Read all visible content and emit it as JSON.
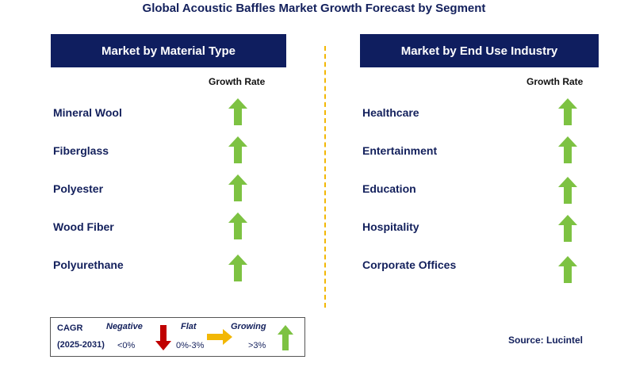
{
  "title": "Global Acoustic Baffles Market Growth Forecast by Segment",
  "left_panel": {
    "header": "Market by  Material Type",
    "column_header": "Growth Rate",
    "rows": [
      {
        "label": "Mineral Wool",
        "trend": "growing"
      },
      {
        "label": "Fiberglass",
        "trend": "growing"
      },
      {
        "label": "Polyester",
        "trend": "growing"
      },
      {
        "label": "Wood Fiber",
        "trend": "growing"
      },
      {
        "label": "Polyurethane",
        "trend": "growing"
      }
    ]
  },
  "right_panel": {
    "header": "Market by End Use Industry",
    "column_header": "Growth Rate",
    "rows": [
      {
        "label": "Healthcare",
        "trend": "growing"
      },
      {
        "label": "Entertainment",
        "trend": "growing"
      },
      {
        "label": "Education",
        "trend": "growing"
      },
      {
        "label": "Hospitality",
        "trend": "growing"
      },
      {
        "label": "Corporate Offices",
        "trend": "growing"
      }
    ]
  },
  "legend": {
    "cagr_label": "CAGR",
    "period": "(2025-2031)",
    "negative_label": "Negative",
    "negative_range": "<0%",
    "flat_label": "Flat",
    "flat_range": "0%-3%",
    "growing_label": "Growing",
    "growing_range": ">3%"
  },
  "source": "Source: Lucintel",
  "colors": {
    "header_bg": "#0f1e5f",
    "up_arrow": "#7dc242",
    "down_arrow": "#c00000",
    "flat_arrow": "#f2b705",
    "divider": "#f2b705"
  },
  "icons": {
    "growing": "up-arrow-icon",
    "negative": "down-arrow-icon",
    "flat": "right-arrow-icon"
  }
}
